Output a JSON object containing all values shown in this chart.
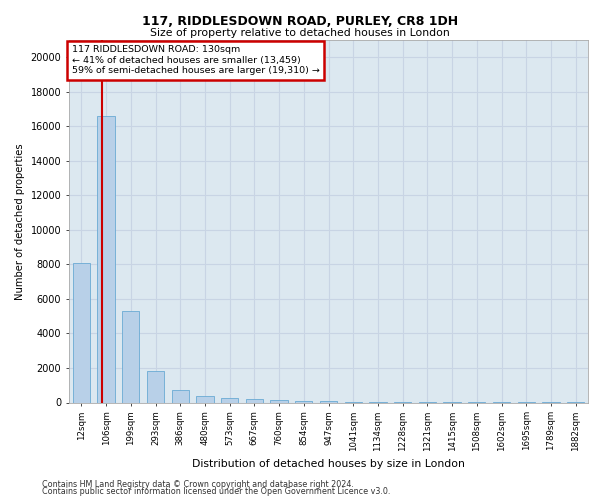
{
  "title1": "117, RIDDLESDOWN ROAD, PURLEY, CR8 1DH",
  "title2": "Size of property relative to detached houses in London",
  "xlabel": "Distribution of detached houses by size in London",
  "ylabel": "Number of detached properties",
  "footer1": "Contains HM Land Registry data © Crown copyright and database right 2024.",
  "footer2": "Contains public sector information licensed under the Open Government Licence v3.0.",
  "bar_labels": [
    "12sqm",
    "106sqm",
    "199sqm",
    "293sqm",
    "386sqm",
    "480sqm",
    "573sqm",
    "667sqm",
    "760sqm",
    "854sqm",
    "947sqm",
    "1041sqm",
    "1134sqm",
    "1228sqm",
    "1321sqm",
    "1415sqm",
    "1508sqm",
    "1602sqm",
    "1695sqm",
    "1789sqm",
    "1882sqm"
  ],
  "bar_values": [
    8100,
    16600,
    5300,
    1800,
    700,
    350,
    280,
    200,
    150,
    100,
    60,
    40,
    20,
    15,
    10,
    8,
    5,
    4,
    3,
    2,
    2
  ],
  "bar_color": "#b8d0e8",
  "bar_edge_color": "#6aaad4",
  "ylim": [
    0,
    21000
  ],
  "yticks": [
    0,
    2000,
    4000,
    6000,
    8000,
    10000,
    12000,
    14000,
    16000,
    18000,
    20000
  ],
  "red_line_color": "#cc0000",
  "annotation_text": "117 RIDDLESDOWN ROAD: 130sqm\n← 41% of detached houses are smaller (13,459)\n59% of semi-detached houses are larger (19,310) →",
  "annotation_box_color": "#cc0000",
  "grid_color": "#c8d4e4",
  "background_color": "#dce8f0",
  "bar_width": 0.7
}
